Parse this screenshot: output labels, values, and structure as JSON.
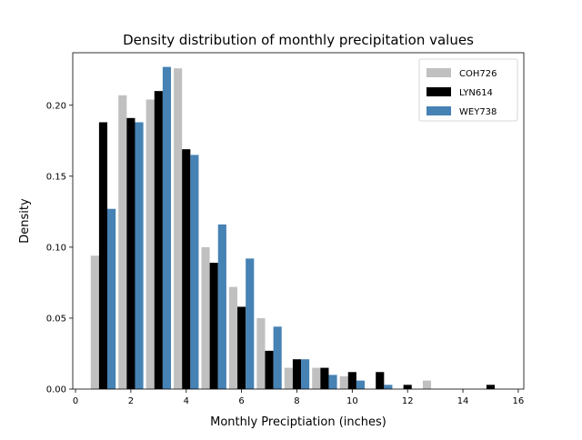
{
  "chart_data": {
    "type": "bar",
    "title": "Density distribution of monthly precipitation values",
    "xlabel": "Monthly Preciptiation (inches)",
    "ylabel": "Density",
    "xlim": [
      -0.1,
      16.2
    ],
    "ylim": [
      0,
      0.237
    ],
    "xticks": [
      0,
      2,
      4,
      6,
      8,
      10,
      12,
      14,
      16
    ],
    "yticks": [
      0.0,
      0.05,
      0.1,
      0.15,
      0.2
    ],
    "ytick_labels": [
      "0.00",
      "0.05",
      "0.10",
      "0.15",
      "0.20"
    ],
    "xtick_labels": [
      "0",
      "2",
      "4",
      "6",
      "8",
      "10",
      "12",
      "14",
      "16"
    ],
    "bin_centers": [
      1,
      2,
      3,
      4,
      5,
      6,
      7,
      8,
      9,
      10,
      11,
      12,
      13,
      14,
      15
    ],
    "bar_width": 0.3,
    "series_offsets": [
      -0.3,
      0.0,
      0.3
    ],
    "legend_position": "top-right",
    "grid": false,
    "series": [
      {
        "name": "COH726",
        "color": "#c0c0c0",
        "values": [
          0.094,
          0.207,
          0.204,
          0.226,
          0.1,
          0.072,
          0.05,
          0.015,
          0.015,
          0.009,
          0.0,
          0.0,
          0.006,
          0.0,
          0.0
        ]
      },
      {
        "name": "LYN614",
        "color": "#000000",
        "values": [
          0.188,
          0.191,
          0.21,
          0.169,
          0.089,
          0.058,
          0.027,
          0.021,
          0.015,
          0.012,
          0.012,
          0.003,
          0.0,
          0.0,
          0.003
        ]
      },
      {
        "name": "WEY738",
        "color": "#4682b4",
        "values": [
          0.127,
          0.188,
          0.227,
          0.165,
          0.116,
          0.092,
          0.044,
          0.021,
          0.01,
          0.006,
          0.003,
          0.0,
          0.0,
          0.0,
          0.0
        ]
      }
    ]
  }
}
